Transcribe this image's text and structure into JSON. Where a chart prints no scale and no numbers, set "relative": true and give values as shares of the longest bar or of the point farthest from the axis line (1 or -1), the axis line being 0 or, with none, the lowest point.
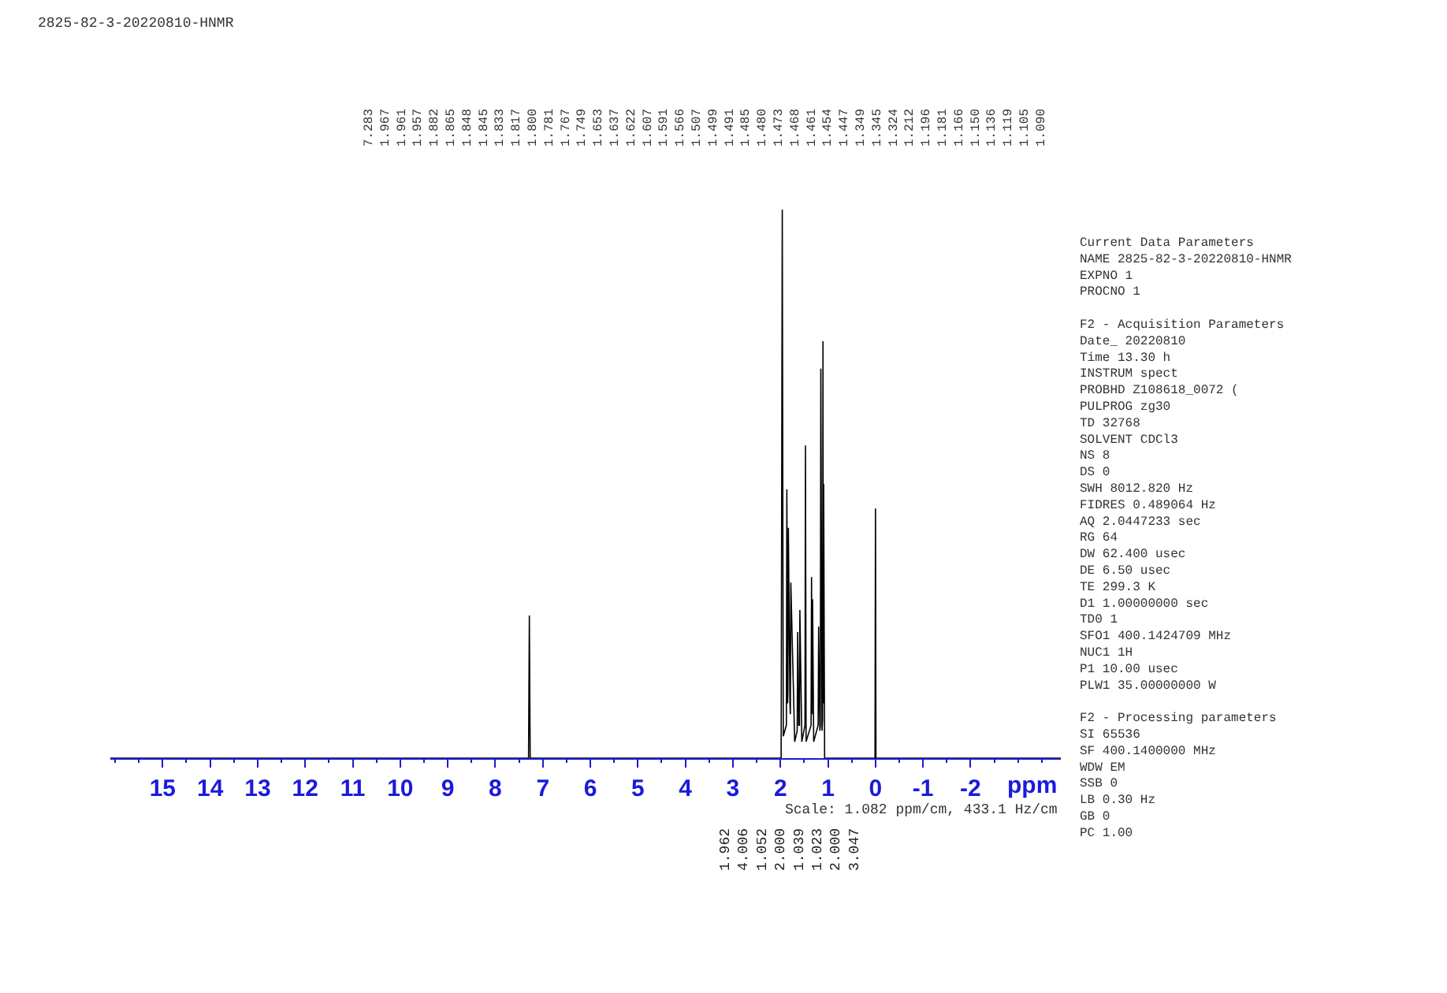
{
  "chart_data": {
    "type": "line",
    "relative": true,
    "marker": "none",
    "line_style": "solid",
    "xlabel": "ppm",
    "xlim": [
      16.1,
      -3.9
    ],
    "xticks": [
      15,
      14,
      13,
      12,
      11,
      10,
      9,
      8,
      7,
      6,
      5,
      4,
      3,
      2,
      1,
      0,
      -1,
      -2
    ],
    "x": [
      16.1,
      7.3,
      7.283,
      7.266,
      1.985,
      1.961,
      1.94,
      1.875,
      1.865,
      1.85,
      1.843,
      1.833,
      1.8,
      1.791,
      1.781,
      1.7,
      1.647,
      1.637,
      1.615,
      1.6,
      1.591,
      1.55,
      1.483,
      1.473,
      1.46,
      1.355,
      1.345,
      1.335,
      1.324,
      1.3,
      1.206,
      1.196,
      1.17,
      1.16,
      1.15,
      1.125,
      1.113,
      1.105,
      1.098,
      1.09,
      1.07,
      0.01,
      0.0,
      -0.01,
      -3.9
    ],
    "series": [
      {
        "color": "#000000",
        "values": [
          0,
          0,
          0.26,
          0,
          0,
          1.0,
          0.04,
          0.06,
          0.49,
          0.1,
          0.12,
          0.42,
          0.1,
          0.08,
          0.32,
          0.03,
          0.05,
          0.23,
          0.06,
          0.06,
          0.27,
          0.03,
          0.06,
          0.57,
          0.03,
          0.06,
          0.33,
          0.08,
          0.29,
          0.03,
          0.06,
          0.24,
          0.05,
          0.06,
          0.71,
          0.05,
          0.07,
          0.76,
          0.1,
          0.5,
          0,
          0,
          0.455,
          0,
          0
        ]
      }
    ],
    "annotations": [
      "2825-82-3-20220810-HNMR",
      "Scale: 1.082 ppm/cm, 433.1 Hz/cm",
      "Current Data Parameters\nNAME 2825-82-3-20220810-HNMR\nEXPNO 1\nPROCNO 1\n\nF2 - Acquisition Parameters\nDate_ 20220810\nTime 13.30 h\nINSTRUM spect\nPROBHD Z108618_0072 (\nPULPROG zg30\nTD 32768\nSOLVENT CDCl3\nNS 8\nDS 0\nSWH 8012.820 Hz\nFIDRES 0.489064 Hz\nAQ 2.0447233 sec\nRG 64\nDW 62.400 usec\nDE 6.50 usec\nTE 299.3 K\nD1 1.00000000 sec\nTD0 1\nSFO1 400.1424709 MHz\nNUC1 1H\nP1 10.00 usec\nPLW1 35.00000000 W\n\nF2 - Processing parameters\nSI 65536\nSF 400.1400000 MHz\nWDW EM\nSSB 0\nLB 0.30 Hz\nGB 0\nPC 1.00",
      "7.283\n1.967\n1.961\n1.957\n1.882\n1.865\n1.848\n1.845\n1.833\n1.817\n1.800\n1.781\n1.767\n1.749\n1.653\n1.637\n1.622\n1.607\n1.591\n1.566\n1.507\n1.499\n1.491\n1.485\n1.480\n1.473\n1.468\n1.461\n1.454\n1.447\n1.349\n1.345\n1.324\n1.212\n1.196\n1.181\n1.166\n1.150\n1.136\n1.119\n1.105\n1.090",
      "1.962\n4.006\n1.052\n2.000\n1.039\n1.023\n2.000\n3.047"
    ]
  }
}
